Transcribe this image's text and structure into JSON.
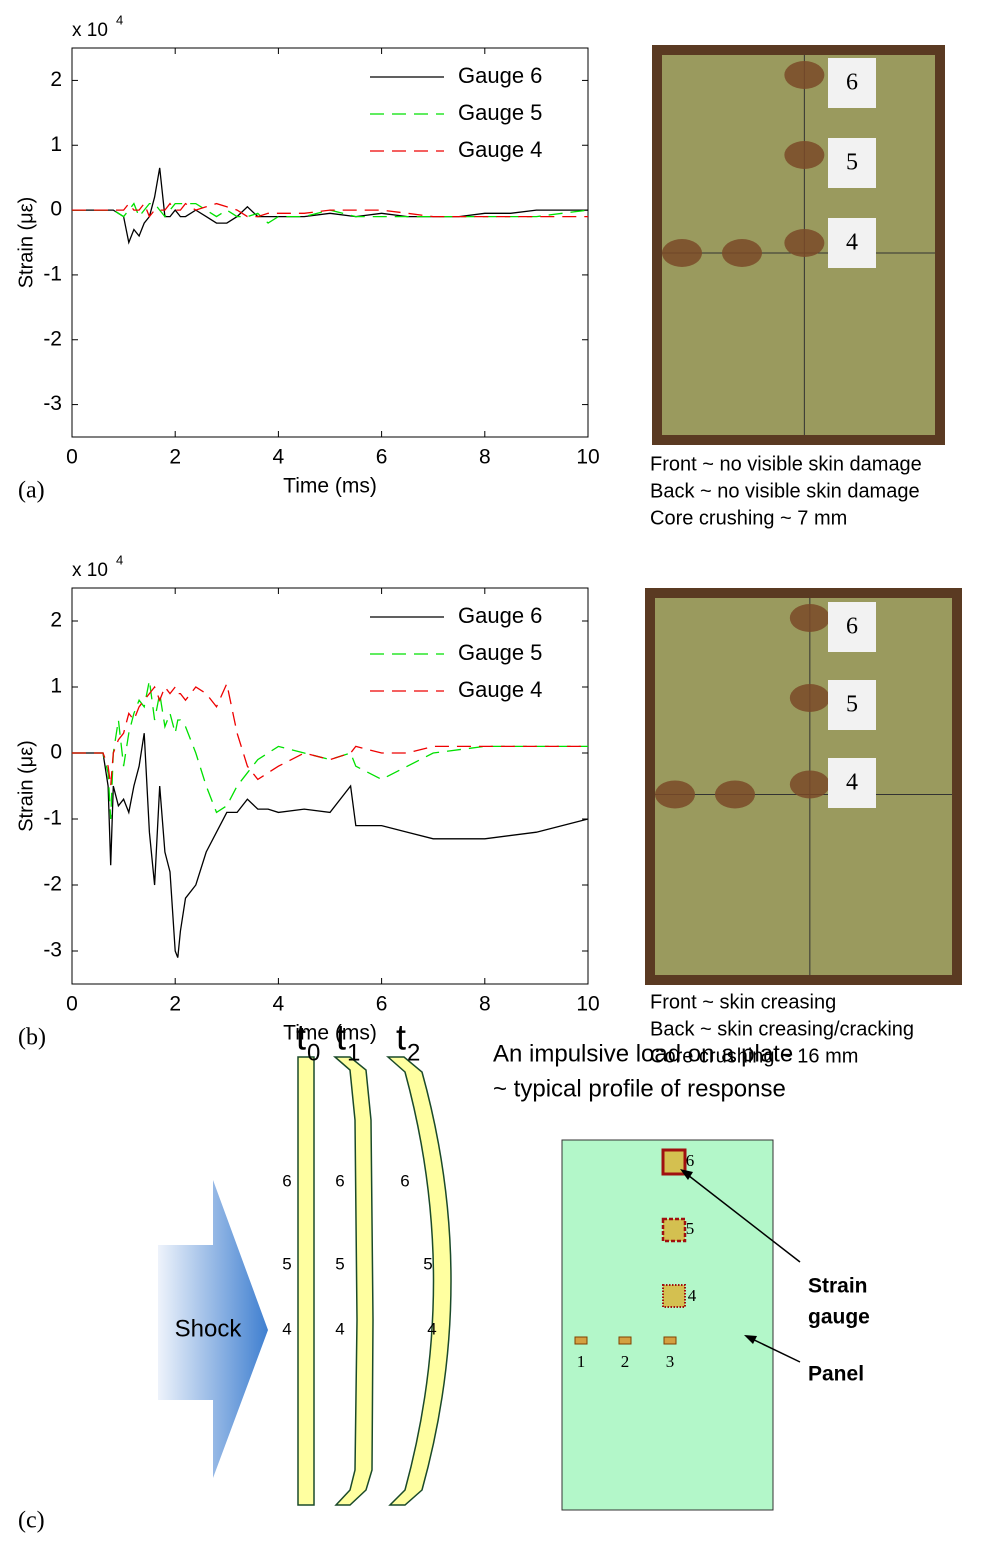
{
  "chart_data": [
    {
      "type": "line",
      "panel_label": "(a)",
      "y_scale": {
        "base": "x 10",
        "exponent": "4"
      },
      "xlabel": "Time (ms)",
      "ylabel": "Strain (με)",
      "legend": "upper right",
      "grid": false,
      "xlim": [
        0,
        10
      ],
      "ylim": [
        -3.5,
        2.5
      ],
      "xticks": [
        0,
        2,
        4,
        6,
        8,
        10
      ],
      "yticks": [
        -3,
        -2,
        -1,
        0,
        1,
        2
      ],
      "x": [
        0,
        0.5,
        0.8,
        1.0,
        1.1,
        1.2,
        1.3,
        1.4,
        1.5,
        1.6,
        1.7,
        1.8,
        1.9,
        2.0,
        2.1,
        2.2,
        2.4,
        2.6,
        2.8,
        3.0,
        3.2,
        3.4,
        3.6,
        3.8,
        4.0,
        4.5,
        5.0,
        5.5,
        6.0,
        6.5,
        7.0,
        7.5,
        8.0,
        8.5,
        9.0,
        9.5,
        10
      ],
      "series": [
        {
          "name": "Gauge 6",
          "color": "#000000",
          "style": "solid",
          "values": [
            0,
            0,
            0,
            -0.1,
            -0.5,
            -0.3,
            -0.4,
            -0.2,
            -0.1,
            0.2,
            0.65,
            -0.1,
            -0.1,
            0,
            -0.1,
            -0.1,
            0,
            -0.1,
            -0.2,
            -0.2,
            -0.1,
            0.05,
            -0.1,
            -0.1,
            -0.1,
            -0.1,
            -0.05,
            -0.1,
            -0.05,
            -0.1,
            -0.1,
            -0.1,
            -0.05,
            -0.05,
            0,
            0,
            0
          ]
        },
        {
          "name": "Gauge 5",
          "color": "#00e000",
          "style": "dashed",
          "values": [
            0,
            0,
            0,
            -0.1,
            0,
            0.1,
            -0.1,
            0,
            0.1,
            0.1,
            0,
            -0.1,
            0,
            0.1,
            0.1,
            0.1,
            0.1,
            0,
            -0.1,
            0,
            -0.1,
            -0.1,
            -0.05,
            -0.2,
            -0.1,
            -0.1,
            0,
            -0.1,
            -0.1,
            -0.1,
            -0.1,
            -0.1,
            -0.1,
            -0.1,
            -0.1,
            -0.05,
            0
          ]
        },
        {
          "name": "Gauge 4",
          "color": "#ee0000",
          "style": "dashed",
          "values": [
            0,
            0,
            0,
            0,
            0.1,
            0,
            0,
            0.1,
            -0.1,
            0,
            0,
            0,
            0.1,
            0,
            0,
            0.1,
            0,
            0.05,
            0.1,
            0.05,
            0,
            -0.1,
            -0.1,
            -0.05,
            -0.05,
            -0.05,
            0,
            0,
            0,
            -0.05,
            -0.1,
            -0.1,
            -0.1,
            -0.1,
            -0.1,
            -0.1,
            -0.1
          ]
        }
      ]
    },
    {
      "type": "line",
      "panel_label": "(b)",
      "y_scale": {
        "base": "x 10",
        "exponent": "4"
      },
      "xlabel": "Time (ms)",
      "ylabel": "Strain (με)",
      "legend": "upper right",
      "grid": false,
      "xlim": [
        0,
        10
      ],
      "ylim": [
        -3.5,
        2.5
      ],
      "xticks": [
        0,
        2,
        4,
        6,
        8,
        10
      ],
      "yticks": [
        -3,
        -2,
        -1,
        0,
        1,
        2
      ],
      "x": [
        0,
        0.6,
        0.7,
        0.75,
        0.8,
        0.9,
        1.0,
        1.1,
        1.2,
        1.3,
        1.4,
        1.5,
        1.6,
        1.7,
        1.8,
        1.9,
        2.0,
        2.05,
        2.1,
        2.2,
        2.4,
        2.6,
        2.8,
        3.0,
        3.2,
        3.4,
        3.6,
        3.8,
        4.0,
        4.5,
        5.0,
        5.4,
        5.5,
        6.0,
        6.5,
        7.0,
        8.0,
        9.0,
        10
      ],
      "series": [
        {
          "name": "Gauge 6",
          "color": "#000000",
          "style": "solid",
          "values": [
            0,
            0,
            -0.5,
            -1.7,
            -0.5,
            -0.8,
            -0.7,
            -0.9,
            -0.5,
            -0.2,
            0.3,
            -1.2,
            -2.0,
            -0.5,
            -1.5,
            -1.8,
            -3.0,
            -3.1,
            -2.7,
            -2.2,
            -2.0,
            -1.5,
            -1.2,
            -0.9,
            -0.9,
            -0.7,
            -0.85,
            -0.85,
            -0.9,
            -0.85,
            -0.9,
            -0.5,
            -1.1,
            -1.1,
            -1.2,
            -1.3,
            -1.3,
            -1.2,
            -1.0
          ]
        },
        {
          "name": "Gauge 5",
          "color": "#00e000",
          "style": "dashed",
          "values": [
            0,
            0,
            -0.3,
            -1.0,
            0,
            0.5,
            -0.2,
            0.3,
            0.6,
            0.8,
            0.7,
            1.1,
            0.5,
            0.9,
            0.4,
            0.6,
            0.3,
            0.5,
            0.5,
            0.4,
            0,
            -0.5,
            -0.9,
            -0.8,
            -0.5,
            -0.3,
            -0.1,
            0,
            0.1,
            0,
            -0.1,
            0,
            -0.2,
            -0.4,
            -0.2,
            0,
            0.1,
            0.1,
            0.1
          ]
        },
        {
          "name": "Gauge 4",
          "color": "#ee0000",
          "style": "dashed",
          "values": [
            0,
            0,
            -0.2,
            -0.5,
            0,
            0.2,
            0.3,
            0.6,
            0.5,
            0.7,
            0.8,
            0.9,
            1.0,
            0.8,
            1.0,
            0.9,
            1.0,
            0.9,
            0.9,
            0.8,
            1.0,
            0.9,
            0.7,
            1.05,
            0.3,
            -0.2,
            -0.4,
            -0.3,
            -0.2,
            0,
            -0.1,
            0,
            0.1,
            0,
            0,
            0.1,
            0.1,
            0.1,
            0.1
          ]
        }
      ]
    }
  ],
  "photos": [
    {
      "gauge_labels": [
        "6",
        "5",
        "4"
      ],
      "caption": [
        "Front ~ no visible skin damage",
        "Back ~ no visible skin damage",
        "Core crushing ~ 7 mm"
      ]
    },
    {
      "gauge_labels": [
        "6",
        "5",
        "4"
      ],
      "caption": [
        "Front ~ skin creasing",
        "Back ~ skin creasing/cracking",
        "Core crushing ~ 16 mm"
      ]
    }
  ],
  "diagram": {
    "panel_label": "(c)",
    "shock": "Shock",
    "states": [
      {
        "base": "t",
        "sub": "0",
        "gauge_labels": [
          "6",
          "5",
          "4"
        ]
      },
      {
        "base": "t",
        "sub": "1",
        "gauge_labels": [
          "6",
          "5",
          "4"
        ]
      },
      {
        "base": "t",
        "sub": "2",
        "gauge_labels": [
          "6",
          "5",
          "4"
        ]
      }
    ],
    "title": [
      "An impulsive load on a plate",
      "~ typical profile of response"
    ],
    "gauge_labels": [
      "1",
      "2",
      "3",
      "4",
      "5",
      "6"
    ],
    "strain_gauge": [
      "Strain",
      "gauge"
    ],
    "panel": "Panel"
  }
}
